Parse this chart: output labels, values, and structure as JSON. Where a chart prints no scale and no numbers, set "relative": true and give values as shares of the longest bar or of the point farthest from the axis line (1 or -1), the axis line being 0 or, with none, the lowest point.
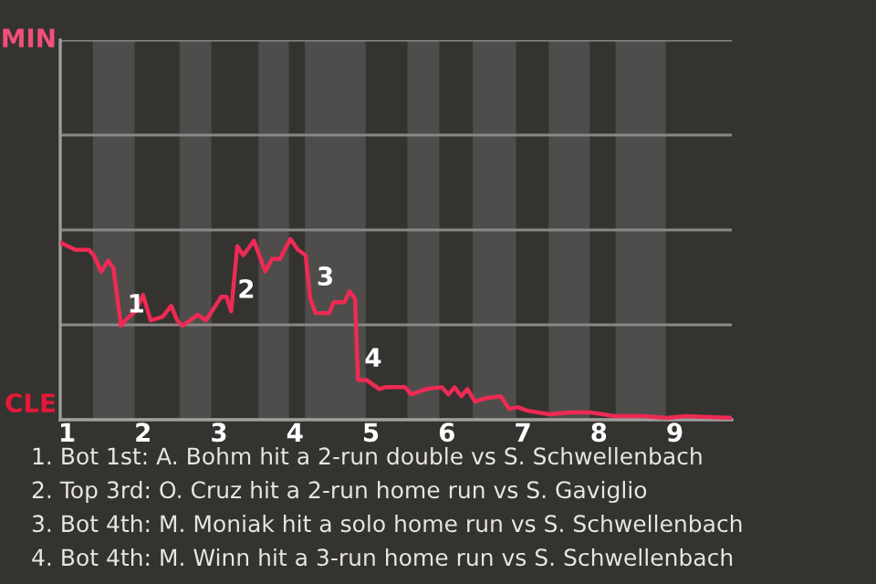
{
  "chart_data": {
    "type": "line",
    "relative": true,
    "xlim": [
      0.91,
      9.75
    ],
    "ylim": [
      0,
      2.1
    ],
    "xticks": [
      1,
      2,
      3,
      4,
      5,
      6,
      7,
      8,
      9
    ],
    "grid": "y",
    "marker": "none",
    "line_style": "solid",
    "bands": [
      {
        "axis": "x",
        "from": 1.34,
        "to": 1.89,
        "color": "#4f4d4b"
      },
      {
        "axis": "x",
        "from": 2.48,
        "to": 2.9,
        "color": "#4f4d4b"
      },
      {
        "axis": "x",
        "from": 3.52,
        "to": 3.92,
        "color": "#4f4d4b"
      },
      {
        "axis": "x",
        "from": 4.13,
        "to": 4.93,
        "color": "#4f4d4b"
      },
      {
        "axis": "x",
        "from": 5.48,
        "to": 5.9,
        "color": "#4f4d4b"
      },
      {
        "axis": "x",
        "from": 6.34,
        "to": 6.91,
        "color": "#4f4d4b"
      },
      {
        "axis": "x",
        "from": 7.34,
        "to": 7.88,
        "color": "#4f4d4b"
      },
      {
        "axis": "x",
        "from": 8.22,
        "to": 8.88,
        "color": "#4f4d4b"
      }
    ],
    "series": [
      {
        "color": "#ee2a55",
        "x": [
          0.91,
          1.11,
          1.19,
          1.29,
          1.35,
          1.45,
          1.54,
          1.61,
          1.71,
          1.79,
          1.9,
          2.0,
          2.1,
          2.26,
          2.37,
          2.45,
          2.52,
          2.72,
          2.83,
          3.03,
          3.1,
          3.16,
          3.24,
          3.32,
          3.46,
          3.61,
          3.7,
          3.8,
          3.94,
          4.04,
          4.14,
          4.2,
          4.27,
          4.45,
          4.51,
          4.65,
          4.72,
          4.79,
          4.83,
          4.94,
          5.11,
          5.19,
          5.45,
          5.53,
          5.73,
          5.93,
          6.02,
          6.1,
          6.19,
          6.27,
          6.37,
          6.52,
          6.71,
          6.82,
          6.93,
          7.06,
          7.35,
          7.63,
          7.9,
          8.21,
          8.58,
          8.89,
          9.15,
          9.75
        ],
        "values": [
          0.98,
          0.94,
          0.94,
          0.94,
          0.91,
          0.82,
          0.88,
          0.84,
          0.52,
          0.56,
          0.6,
          0.69,
          0.55,
          0.57,
          0.63,
          0.55,
          0.52,
          0.58,
          0.55,
          0.68,
          0.68,
          0.6,
          0.96,
          0.91,
          0.99,
          0.82,
          0.89,
          0.89,
          1.0,
          0.94,
          0.91,
          0.67,
          0.59,
          0.59,
          0.65,
          0.65,
          0.71,
          0.67,
          0.22,
          0.22,
          0.17,
          0.18,
          0.18,
          0.14,
          0.17,
          0.18,
          0.14,
          0.18,
          0.13,
          0.17,
          0.1,
          0.12,
          0.13,
          0.06,
          0.07,
          0.05,
          0.03,
          0.04,
          0.04,
          0.02,
          0.02,
          0.01,
          0.02,
          0.01
        ]
      }
    ],
    "annotations": [
      {
        "text": "1",
        "x": 1.71,
        "y": 0.52
      },
      {
        "text": "2",
        "x": 3.16,
        "y": 0.6
      },
      {
        "text": "3",
        "x": 4.2,
        "y": 0.67
      },
      {
        "text": "4",
        "x": 4.83,
        "y": 0.22
      },
      "MIN",
      "CLE",
      "1. Bot 1st: A. Bohm hit a 2-run double vs S. Schwellenbach",
      "2. Top 3rd: O. Cruz hit a 2-run home run vs S. Gaviglio",
      "3. Bot 4th: M. Moniak hit a solo home run vs S. Schwellenbach",
      "4. Bot 4th: M. Winn hit a 3-run home run vs S. Schwellenbach"
    ]
  }
}
